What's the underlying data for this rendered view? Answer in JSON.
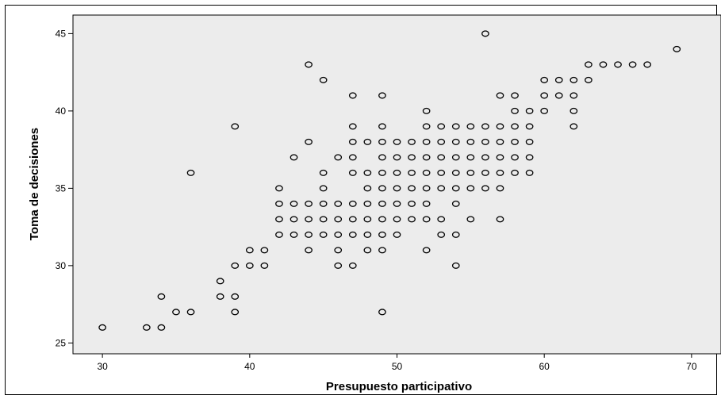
{
  "chart_data": {
    "type": "scatter",
    "xlabel": "Presupuesto participativo",
    "ylabel": "Toma de decisiones",
    "xlim": [
      28,
      72
    ],
    "ylim": [
      24.3,
      46.2
    ],
    "xticks": [
      30,
      40,
      50,
      60,
      70
    ],
    "yticks": [
      25,
      30,
      35,
      40,
      45
    ],
    "grid": false,
    "colors": {
      "plot_background": "#ececec",
      "marker": "#000000"
    },
    "points": [
      [
        30,
        26
      ],
      [
        33,
        26
      ],
      [
        34,
        26
      ],
      [
        34,
        28
      ],
      [
        35,
        27
      ],
      [
        36,
        27
      ],
      [
        36,
        36
      ],
      [
        38,
        28
      ],
      [
        38,
        29
      ],
      [
        39,
        27
      ],
      [
        39,
        28
      ],
      [
        39,
        30
      ],
      [
        39,
        39
      ],
      [
        40,
        30
      ],
      [
        40,
        31
      ],
      [
        41,
        30
      ],
      [
        41,
        31
      ],
      [
        42,
        32
      ],
      [
        42,
        33
      ],
      [
        42,
        34
      ],
      [
        42,
        35
      ],
      [
        43,
        32
      ],
      [
        43,
        33
      ],
      [
        43,
        34
      ],
      [
        43,
        37
      ],
      [
        44,
        31
      ],
      [
        44,
        32
      ],
      [
        44,
        33
      ],
      [
        44,
        34
      ],
      [
        44,
        38
      ],
      [
        44,
        43
      ],
      [
        45,
        32
      ],
      [
        45,
        33
      ],
      [
        45,
        34
      ],
      [
        45,
        35
      ],
      [
        45,
        36
      ],
      [
        45,
        42
      ],
      [
        46,
        30
      ],
      [
        46,
        31
      ],
      [
        46,
        32
      ],
      [
        46,
        33
      ],
      [
        46,
        34
      ],
      [
        46,
        37
      ],
      [
        47,
        30
      ],
      [
        47,
        32
      ],
      [
        47,
        33
      ],
      [
        47,
        34
      ],
      [
        47,
        36
      ],
      [
        47,
        37
      ],
      [
        47,
        38
      ],
      [
        47,
        39
      ],
      [
        47,
        41
      ],
      [
        48,
        31
      ],
      [
        48,
        32
      ],
      [
        48,
        33
      ],
      [
        48,
        34
      ],
      [
        48,
        35
      ],
      [
        48,
        36
      ],
      [
        48,
        38
      ],
      [
        49,
        27
      ],
      [
        49,
        31
      ],
      [
        49,
        32
      ],
      [
        49,
        33
      ],
      [
        49,
        34
      ],
      [
        49,
        35
      ],
      [
        49,
        36
      ],
      [
        49,
        37
      ],
      [
        49,
        38
      ],
      [
        49,
        39
      ],
      [
        49,
        41
      ],
      [
        50,
        32
      ],
      [
        50,
        33
      ],
      [
        50,
        34
      ],
      [
        50,
        35
      ],
      [
        50,
        36
      ],
      [
        50,
        37
      ],
      [
        50,
        38
      ],
      [
        51,
        33
      ],
      [
        51,
        34
      ],
      [
        51,
        35
      ],
      [
        51,
        36
      ],
      [
        51,
        37
      ],
      [
        51,
        38
      ],
      [
        52,
        31
      ],
      [
        52,
        33
      ],
      [
        52,
        34
      ],
      [
        52,
        35
      ],
      [
        52,
        36
      ],
      [
        52,
        37
      ],
      [
        52,
        38
      ],
      [
        52,
        39
      ],
      [
        52,
        40
      ],
      [
        53,
        32
      ],
      [
        53,
        33
      ],
      [
        53,
        35
      ],
      [
        53,
        36
      ],
      [
        53,
        37
      ],
      [
        53,
        38
      ],
      [
        53,
        39
      ],
      [
        54,
        30
      ],
      [
        54,
        32
      ],
      [
        54,
        34
      ],
      [
        54,
        35
      ],
      [
        54,
        36
      ],
      [
        54,
        37
      ],
      [
        54,
        38
      ],
      [
        54,
        39
      ],
      [
        55,
        33
      ],
      [
        55,
        35
      ],
      [
        55,
        36
      ],
      [
        55,
        37
      ],
      [
        55,
        38
      ],
      [
        55,
        39
      ],
      [
        56,
        35
      ],
      [
        56,
        36
      ],
      [
        56,
        37
      ],
      [
        56,
        38
      ],
      [
        56,
        39
      ],
      [
        56,
        45
      ],
      [
        57,
        33
      ],
      [
        57,
        35
      ],
      [
        57,
        36
      ],
      [
        57,
        37
      ],
      [
        57,
        38
      ],
      [
        57,
        39
      ],
      [
        57,
        41
      ],
      [
        58,
        36
      ],
      [
        58,
        37
      ],
      [
        58,
        38
      ],
      [
        58,
        39
      ],
      [
        58,
        40
      ],
      [
        58,
        41
      ],
      [
        59,
        36
      ],
      [
        59,
        37
      ],
      [
        59,
        38
      ],
      [
        59,
        39
      ],
      [
        59,
        40
      ],
      [
        60,
        40
      ],
      [
        60,
        41
      ],
      [
        60,
        42
      ],
      [
        61,
        41
      ],
      [
        61,
        42
      ],
      [
        62,
        39
      ],
      [
        62,
        40
      ],
      [
        62,
        41
      ],
      [
        62,
        42
      ],
      [
        63,
        42
      ],
      [
        63,
        43
      ],
      [
        64,
        43
      ],
      [
        65,
        43
      ],
      [
        66,
        43
      ],
      [
        67,
        43
      ],
      [
        69,
        44
      ]
    ]
  }
}
